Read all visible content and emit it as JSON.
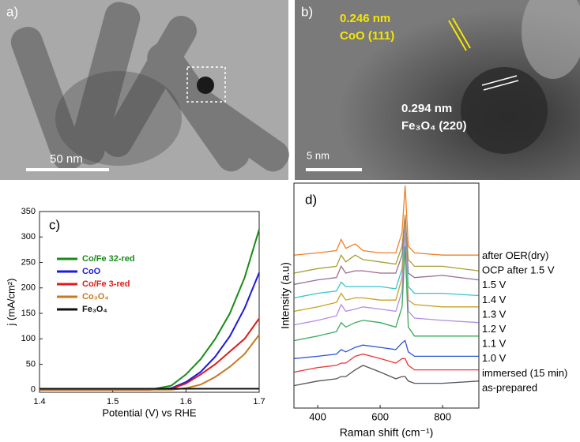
{
  "images": [
    {
      "label": "a)",
      "scale_bar": "50 nm"
    },
    {
      "label": "b)",
      "scale_bar": "5 nm",
      "annotations": [
        "0.246 nm",
        "CoO (111)",
        "0.294 nm",
        "Fe₃O₄ (220)"
      ]
    }
  ],
  "chart_data": [
    {
      "type": "line",
      "panel_label": "c)",
      "x_label": "Potential (V) vs RHE",
      "y_label": "j (mA/cm²)",
      "xlim": [
        1.4,
        1.7
      ],
      "xticks": [
        1.4,
        1.5,
        1.6,
        1.7
      ],
      "ylim": [
        -5,
        350
      ],
      "yticks": [
        0,
        50,
        100,
        150,
        200,
        250,
        300,
        350
      ],
      "x": [
        1.4,
        1.5,
        1.55,
        1.58,
        1.6,
        1.62,
        1.64,
        1.66,
        1.68,
        1.7
      ],
      "series": [
        {
          "name": "Co/Fe 32-red",
          "color": "#1a8a1a",
          "values": [
            0,
            0,
            0,
            8,
            30,
            60,
            100,
            150,
            220,
            315
          ]
        },
        {
          "name": "CoO",
          "color": "#1a1ae0",
          "values": [
            0,
            0,
            0,
            3,
            15,
            35,
            65,
            105,
            160,
            230
          ]
        },
        {
          "name": "Co/Fe 3-red",
          "color": "#e01a1a",
          "values": [
            0,
            0,
            0,
            2,
            12,
            30,
            50,
            75,
            100,
            140
          ]
        },
        {
          "name": "Co₃O₄",
          "color": "#c87820",
          "values": [
            0,
            0,
            0,
            0,
            3,
            10,
            25,
            45,
            70,
            108
          ]
        },
        {
          "name": "Fe₃O₄",
          "color": "#111111",
          "values": [
            2,
            2,
            2,
            2,
            2,
            2,
            2,
            2,
            2,
            2
          ]
        }
      ]
    },
    {
      "type": "raman",
      "panel_label": "d)",
      "x_label": "Raman shift (cm⁻¹)",
      "y_label": "Intensity (a.u)",
      "xlim": [
        324,
        916
      ],
      "xticks": [
        400,
        600,
        800
      ],
      "ylim": [
        0,
        100
      ],
      "x": [
        325,
        400,
        460,
        475,
        490,
        520,
        545,
        600,
        650,
        670,
        680,
        690,
        710,
        800,
        915
      ],
      "series": [
        {
          "name": "as-prepared",
          "color": "#555555",
          "values": [
            10,
            12,
            13,
            14,
            14,
            17,
            19,
            16,
            13,
            14,
            14,
            12,
            11,
            11,
            12
          ]
        },
        {
          "name": "immersed (15 min)",
          "color": "#e83a3a",
          "values": [
            16,
            18,
            19,
            20,
            20,
            23,
            24,
            22,
            20,
            22,
            22,
            19,
            17,
            17,
            17
          ]
        },
        {
          "name": "1.0 V",
          "color": "#2a56d8",
          "values": [
            22,
            23,
            24,
            26,
            25,
            27,
            28,
            27,
            26,
            29,
            30,
            25,
            23,
            23,
            23
          ]
        },
        {
          "name": "1.1 V",
          "color": "#3aaa5a",
          "values": [
            30,
            32,
            34,
            38,
            36,
            38,
            39,
            38,
            36,
            45,
            72,
            36,
            32,
            32,
            32
          ]
        },
        {
          "name": "1.2 V",
          "color": "#b58ce0",
          "values": [
            37,
            39,
            41,
            46,
            43,
            44,
            45,
            44,
            43,
            52,
            80,
            43,
            40,
            39,
            38
          ]
        },
        {
          "name": "1.3 V",
          "color": "#c8a020",
          "values": [
            43,
            45,
            47,
            51,
            48,
            49,
            49,
            48,
            48,
            58,
            82,
            48,
            46,
            45,
            45
          ]
        },
        {
          "name": "1.4 V",
          "color": "#33c6d0",
          "values": [
            49,
            51,
            52,
            56,
            54,
            54,
            54,
            54,
            53,
            62,
            82,
            54,
            51,
            51,
            50
          ]
        },
        {
          "name": "1.5 V",
          "color": "#9c6b8f",
          "values": [
            55,
            57,
            58,
            63,
            60,
            61,
            61,
            60,
            60,
            68,
            84,
            60,
            58,
            59,
            57
          ]
        },
        {
          "name": "OCP after 1.5 V",
          "color": "#a6a035",
          "values": [
            60,
            62,
            63,
            68,
            65,
            68,
            66,
            65,
            64,
            72,
            86,
            66,
            63,
            63,
            61
          ]
        },
        {
          "name": "after OER(dry)",
          "color": "#f07f2a",
          "values": [
            68,
            69,
            70,
            75,
            71,
            73,
            70,
            69,
            69,
            78,
            99,
            72,
            69,
            68,
            68
          ]
        }
      ]
    }
  ]
}
